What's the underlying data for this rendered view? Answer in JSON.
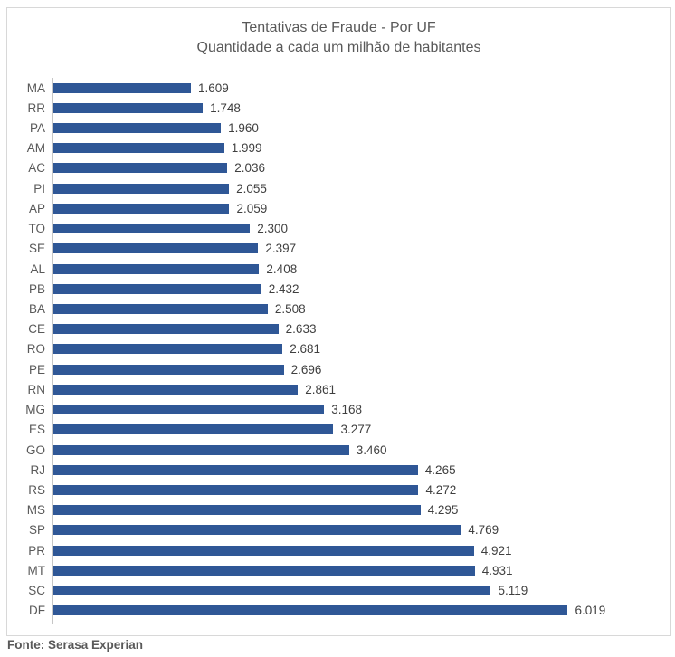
{
  "chart_data": {
    "type": "bar",
    "orientation": "horizontal",
    "title": "Tentativas de Fraude - Por UF",
    "subtitle": "Quantidade a cada um milhão de habitantes",
    "categories": [
      "MA",
      "RR",
      "PA",
      "AM",
      "AC",
      "PI",
      "AP",
      "TO",
      "SE",
      "AL",
      "PB",
      "BA",
      "CE",
      "RO",
      "PE",
      "RN",
      "MG",
      "ES",
      "GO",
      "RJ",
      "RS",
      "MS",
      "SP",
      "PR",
      "MT",
      "SC",
      "DF"
    ],
    "values": [
      1609,
      1748,
      1960,
      1999,
      2036,
      2055,
      2059,
      2300,
      2397,
      2408,
      2432,
      2508,
      2633,
      2681,
      2696,
      2861,
      3168,
      3277,
      3460,
      4265,
      4272,
      4295,
      4769,
      4921,
      4931,
      5119,
      6019
    ],
    "value_labels": [
      "1.609",
      "1.748",
      "1.960",
      "1.999",
      "2.036",
      "2.055",
      "2.059",
      "2.300",
      "2.397",
      "2.408",
      "2.432",
      "2.508",
      "2.633",
      "2.681",
      "2.696",
      "2.861",
      "3.168",
      "3.277",
      "3.460",
      "4.265",
      "4.272",
      "4.295",
      "4.769",
      "4.921",
      "4.931",
      "5.119",
      "6.019"
    ],
    "xlim": [
      0,
      7200
    ],
    "grid": false,
    "legend": "none",
    "bar_color": "#2f5796",
    "axis_line_color": "#c6c6c6",
    "title_color": "#595959",
    "category_label_color": "#595959",
    "value_label_color": "#3f3f3f"
  },
  "footer": {
    "source": "Fonte: Serasa Experian"
  }
}
